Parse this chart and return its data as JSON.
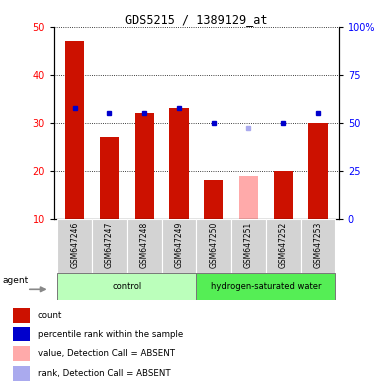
{
  "title": "GDS5215 / 1389129_at",
  "samples": [
    "GSM647246",
    "GSM647247",
    "GSM647248",
    "GSM647249",
    "GSM647250",
    "GSM647251",
    "GSM647252",
    "GSM647253"
  ],
  "red_values": [
    47,
    27,
    32,
    33,
    18,
    19,
    20,
    30
  ],
  "blue_values": [
    33,
    32,
    32,
    33,
    30,
    29,
    30,
    32
  ],
  "absent": [
    false,
    false,
    false,
    false,
    false,
    true,
    false,
    false
  ],
  "groups": [
    {
      "label": "control",
      "start": 0,
      "end": 4,
      "color": "#bbffbb"
    },
    {
      "label": "hydrogen-saturated water",
      "start": 4,
      "end": 8,
      "color": "#55ee55"
    }
  ],
  "ylim_left": [
    10,
    50
  ],
  "ylim_right": [
    0,
    100
  ],
  "left_ticks": [
    10,
    20,
    30,
    40,
    50
  ],
  "right_ticks": [
    0,
    25,
    50,
    75,
    100
  ],
  "right_tick_labels": [
    "0",
    "25",
    "50",
    "75",
    "100%"
  ],
  "bar_color_present": "#cc1100",
  "bar_color_absent": "#ffaaaa",
  "dot_color_present": "#0000cc",
  "dot_color_absent": "#aaaaee",
  "bar_width": 0.55,
  "agent_label": "agent",
  "legend_items": [
    {
      "color": "#cc1100",
      "label": "count"
    },
    {
      "color": "#0000cc",
      "label": "percentile rank within the sample"
    },
    {
      "color": "#ffaaaa",
      "label": "value, Detection Call = ABSENT"
    },
    {
      "color": "#aaaaee",
      "label": "rank, Detection Call = ABSENT"
    }
  ]
}
